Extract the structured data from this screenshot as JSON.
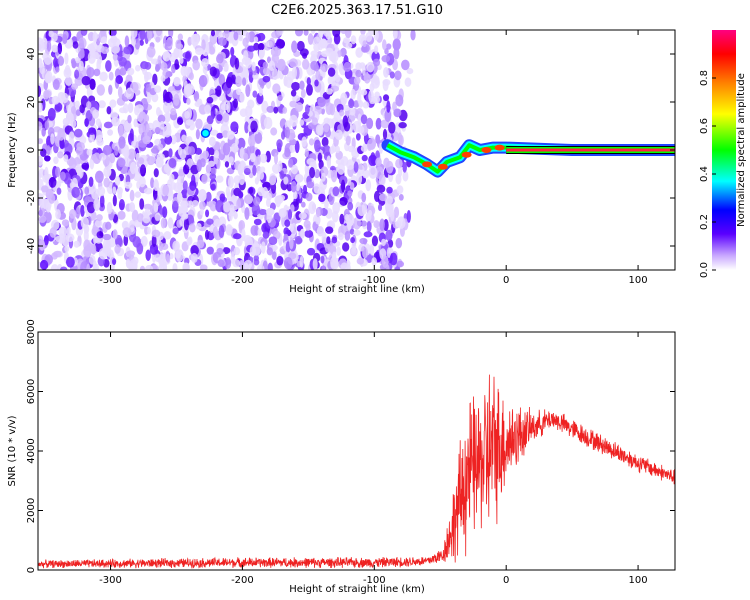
{
  "title": "C2E6.2025.363.17.51.G10",
  "chart_data": [
    {
      "type": "heatmap",
      "xlabel": "Height of straight line (km)",
      "ylabel": "Frequency (Hz)",
      "xlim": [
        -355,
        128
      ],
      "ylim": [
        -50,
        50
      ],
      "xticks": [
        -300,
        -200,
        -100,
        0,
        100
      ],
      "yticks": [
        -40,
        -20,
        0,
        20,
        40
      ],
      "colorbar": {
        "label": "Normalized spectral amplitude",
        "range": [
          0.0,
          1.0
        ],
        "ticks": [
          0.0,
          0.2,
          0.4,
          0.6,
          0.8
        ],
        "colormap": [
          "#ffffff",
          "#5a00ff",
          "#0000ff",
          "#00ffff",
          "#00ff00",
          "#ffff00",
          "#ff8000",
          "#ff0000",
          "#ff0080"
        ]
      },
      "noise_region": {
        "x": [
          -355,
          -70
        ],
        "y": [
          -50,
          50
        ]
      },
      "signal_track": [
        {
          "x": -90,
          "y": 2
        },
        {
          "x": -80,
          "y": -1
        },
        {
          "x": -70,
          "y": -3
        },
        {
          "x": -60,
          "y": -6
        },
        {
          "x": -52,
          "y": -9
        },
        {
          "x": -45,
          "y": -5
        },
        {
          "x": -35,
          "y": -3
        },
        {
          "x": -28,
          "y": 2
        },
        {
          "x": -20,
          "y": 0
        },
        {
          "x": -10,
          "y": 1
        },
        {
          "x": 0,
          "y": 1
        },
        {
          "x": 50,
          "y": 0
        },
        {
          "x": 128,
          "y": 0
        }
      ],
      "spot": {
        "x": -228,
        "y": 7
      }
    },
    {
      "type": "line",
      "xlabel": "Height of straight line (km)",
      "ylabel": "SNR (10 * v/v)",
      "xlim": [
        -355,
        128
      ],
      "ylim": [
        0,
        8000
      ],
      "xticks": [
        -300,
        -200,
        -100,
        0,
        100
      ],
      "yticks": [
        0,
        2000,
        4000,
        6000,
        8000
      ],
      "series": [
        {
          "color": "#ee2222",
          "envelope": [
            {
              "x": -355,
              "mean": 200,
              "spread": 150
            },
            {
              "x": -200,
              "mean": 250,
              "spread": 200
            },
            {
              "x": -100,
              "mean": 250,
              "spread": 200
            },
            {
              "x": -60,
              "mean": 300,
              "spread": 200
            },
            {
              "x": -48,
              "mean": 500,
              "spread": 300
            },
            {
              "x": -38,
              "mean": 1800,
              "spread": 1800
            },
            {
              "x": -30,
              "mean": 3200,
              "spread": 3000
            },
            {
              "x": -20,
              "mean": 3600,
              "spread": 2600
            },
            {
              "x": -12,
              "mean": 4000,
              "spread": 3500
            },
            {
              "x": 0,
              "mean": 4300,
              "spread": 1800
            },
            {
              "x": 20,
              "mean": 4800,
              "spread": 600
            },
            {
              "x": 35,
              "mean": 5100,
              "spread": 400
            },
            {
              "x": 60,
              "mean": 4500,
              "spread": 400
            },
            {
              "x": 100,
              "mean": 3600,
              "spread": 350
            },
            {
              "x": 128,
              "mean": 3100,
              "spread": 300
            }
          ]
        }
      ]
    }
  ]
}
